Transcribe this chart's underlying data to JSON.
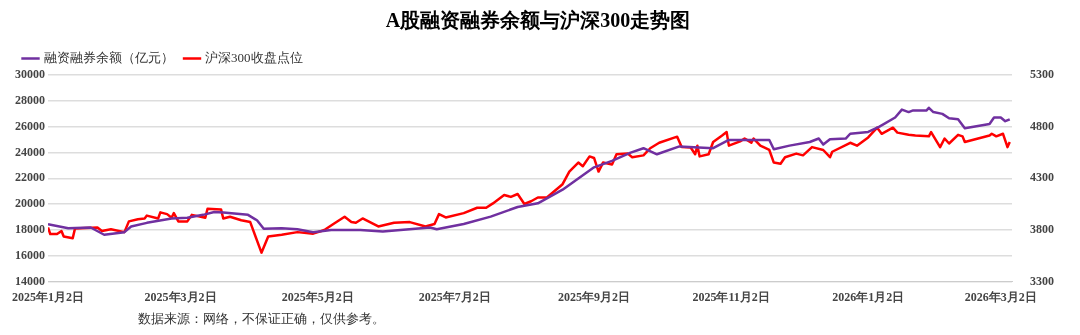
{
  "chart_data": {
    "type": "line",
    "title": "A股融资融券余额与沪深300走势图",
    "series": [
      {
        "name": "融资融券余额（亿元）",
        "color": "#7030a0",
        "axis": "y",
        "x": [
          "2025-01-02",
          "2025-01-11",
          "2025-01-21",
          "2025-01-27",
          "2025-02-05",
          "2025-02-08",
          "2025-02-15",
          "2025-02-26",
          "2025-03-05",
          "2025-03-12",
          "2025-03-17",
          "2025-03-21",
          "2025-04-01",
          "2025-04-05",
          "2025-04-08",
          "2025-04-16",
          "2025-04-23",
          "2025-04-30",
          "2025-05-08",
          "2025-05-21",
          "2025-05-31",
          "2025-06-21",
          "2025-06-24",
          "2025-07-06",
          "2025-07-18",
          "2025-07-30",
          "2025-08-08",
          "2025-08-19",
          "2025-09-02",
          "2025-09-10",
          "2025-09-18",
          "2025-09-24",
          "2025-09-30",
          "2025-10-10",
          "2025-10-25",
          "2025-11-01",
          "2025-11-19",
          "2025-11-21",
          "2025-11-28",
          "2025-12-07",
          "2025-12-11",
          "2025-12-13",
          "2025-12-16",
          "2025-12-23",
          "2025-12-25",
          "2026-01-02",
          "2026-01-07",
          "2026-01-14",
          "2026-01-17",
          "2026-01-20",
          "2026-01-22",
          "2026-01-28",
          "2026-01-29",
          "2026-01-31",
          "2026-02-04",
          "2026-02-07",
          "2026-02-11",
          "2026-02-14",
          "2026-02-25",
          "2026-02-27",
          "2026-03-02",
          "2026-03-04",
          "2026-03-06"
        ],
        "values": [
          18450,
          18130,
          18190,
          17630,
          17830,
          18270,
          18550,
          18890,
          18940,
          19170,
          19390,
          19360,
          19170,
          18750,
          18100,
          18130,
          18050,
          17830,
          18000,
          18000,
          17880,
          18190,
          18050,
          18465,
          19030,
          19780,
          20060,
          21120,
          22850,
          23350,
          23970,
          24330,
          23860,
          24470,
          24330,
          24970,
          24970,
          24250,
          24530,
          24810,
          25080,
          24610,
          25030,
          25080,
          25450,
          25590,
          26000,
          26710,
          27320,
          27130,
          27260,
          27260,
          27460,
          27130,
          26990,
          26650,
          26570,
          25870,
          26200,
          26710,
          26710,
          26420,
          26570
        ]
      },
      {
        "name": "沪深300收盘点位",
        "color": "#ff0000",
        "axis": "y2",
        "x": [
          "2025-01-02",
          "2025-01-03",
          "2025-01-06",
          "2025-01-08",
          "2025-01-09",
          "2025-01-13",
          "2025-01-14",
          "2025-01-24",
          "2025-01-26",
          "2025-01-30",
          "2025-02-05",
          "2025-02-07",
          "2025-02-11",
          "2025-02-14",
          "2025-02-15",
          "2025-02-20",
          "2025-02-21",
          "2025-02-24",
          "2025-02-26",
          "2025-02-27",
          "2025-03-01",
          "2025-03-05",
          "2025-03-07",
          "2025-03-13",
          "2025-03-14",
          "2025-03-20",
          "2025-03-21",
          "2025-03-24",
          "2025-03-29",
          "2025-04-02",
          "2025-04-07",
          "2025-04-10",
          "2025-04-16",
          "2025-04-23",
          "2025-04-30",
          "2025-05-05",
          "2025-05-09",
          "2025-05-14",
          "2025-05-17",
          "2025-05-19",
          "2025-05-22",
          "2025-05-29",
          "2025-06-05",
          "2025-06-12",
          "2025-06-19",
          "2025-06-23",
          "2025-06-25",
          "2025-06-28",
          "2025-07-06",
          "2025-07-12",
          "2025-07-16",
          "2025-07-19",
          "2025-07-24",
          "2025-07-27",
          "2025-07-30",
          "2025-08-02",
          "2025-08-05",
          "2025-08-08",
          "2025-08-12",
          "2025-08-19",
          "2025-08-22",
          "2025-08-26",
          "2025-08-28",
          "2025-08-31",
          "2025-09-02",
          "2025-09-04",
          "2025-09-06",
          "2025-09-10",
          "2025-09-12",
          "2025-09-17",
          "2025-09-19",
          "2025-09-24",
          "2025-09-27",
          "2025-10-01",
          "2025-10-09",
          "2025-10-11",
          "2025-10-15",
          "2025-10-17",
          "2025-10-18",
          "2025-10-19",
          "2025-10-23",
          "2025-10-25",
          "2025-10-29",
          "2025-10-31",
          "2025-11-01",
          "2025-11-06",
          "2025-11-08",
          "2025-11-09",
          "2025-11-11",
          "2025-11-12",
          "2025-11-15",
          "2025-11-19",
          "2025-11-21",
          "2025-11-24",
          "2025-11-26",
          "2025-12-01",
          "2025-12-04",
          "2025-12-08",
          "2025-12-13",
          "2025-12-16",
          "2025-12-17",
          "2025-12-25",
          "2025-12-28",
          "2026-01-02",
          "2026-01-06",
          "2026-01-08",
          "2026-01-13",
          "2026-01-15",
          "2026-01-20",
          "2026-01-23",
          "2026-01-29",
          "2026-01-30",
          "2026-02-03",
          "2026-02-05",
          "2026-02-07",
          "2026-02-11",
          "2026-02-13",
          "2026-02-14",
          "2026-02-25",
          "2026-02-26",
          "2026-02-28",
          "2026-03-03",
          "2026-03-05",
          "2026-03-06"
        ],
        "values": [
          3824,
          3761,
          3761,
          3789,
          3737,
          3719,
          3813,
          3824,
          3789,
          3806,
          3779,
          3883,
          3904,
          3911,
          3939,
          3911,
          3970,
          3953,
          3918,
          3963,
          3883,
          3883,
          3946,
          3918,
          4005,
          3999,
          3911,
          3928,
          3894,
          3876,
          3580,
          3737,
          3754,
          3779,
          3764,
          3800,
          3858,
          3928,
          3876,
          3869,
          3911,
          3834,
          3869,
          3876,
          3834,
          3858,
          3953,
          3921,
          3963,
          4015,
          4015,
          4057,
          4138,
          4120,
          4148,
          4051,
          4078,
          4114,
          4114,
          4243,
          4365,
          4452,
          4417,
          4512,
          4497,
          4365,
          4452,
          4434,
          4533,
          4539,
          4504,
          4522,
          4591,
          4644,
          4703,
          4602,
          4598,
          4533,
          4616,
          4512,
          4533,
          4651,
          4714,
          4748,
          4616,
          4658,
          4685,
          4672,
          4644,
          4685,
          4616,
          4574,
          4452,
          4441,
          4504,
          4539,
          4522,
          4602,
          4574,
          4504,
          4557,
          4644,
          4616,
          4696,
          4790,
          4731,
          4790,
          4742,
          4721,
          4714,
          4706,
          4748,
          4602,
          4685,
          4637,
          4721,
          4706,
          4651,
          4714,
          4731,
          4706,
          4731,
          4602,
          4651
        ]
      }
    ],
    "xlim": [
      "2025-01-02",
      "2026-03-07"
    ],
    "xticks": [
      {
        "value": "2025-01-02",
        "label": "2025年1月2日"
      },
      {
        "value": "2025-03-02",
        "label": "2025年3月2日"
      },
      {
        "value": "2025-05-02",
        "label": "2025年5月2日"
      },
      {
        "value": "2025-07-02",
        "label": "2025年7月2日"
      },
      {
        "value": "2025-09-02",
        "label": "2025年9月2日"
      },
      {
        "value": "2025-11-02",
        "label": "2025年11月2日"
      },
      {
        "value": "2026-01-02",
        "label": "2026年1月2日"
      },
      {
        "value": "2026-03-02",
        "label": "2026年3月2日"
      }
    ],
    "ylim": [
      14000,
      30000
    ],
    "yticks": [
      14000,
      16000,
      18000,
      20000,
      22000,
      24000,
      26000,
      28000,
      30000
    ],
    "y2lim": [
      3300,
      5300
    ],
    "y2ticks": [
      3300,
      3800,
      4300,
      4800,
      5300
    ],
    "grid": "y",
    "legend": "top left",
    "marker": "none",
    "line_style": "solid",
    "annotations": [
      "数据来源：网络，不保证正确，仅供参考。"
    ]
  }
}
